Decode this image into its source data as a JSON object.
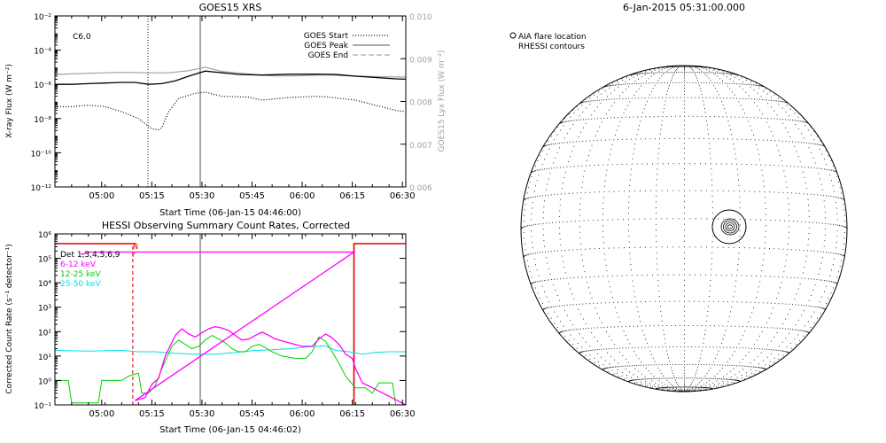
{
  "goes_panel": {
    "title": "GOES15 XRS",
    "ylabel_left": "X-ray Flux (W m⁻²)",
    "ylabel_right": "GOES15 Lyx Flux (W m⁻²)",
    "xlabel": "Start Time (06-Jan-15 04:46:00)",
    "flare_class": "C6.0",
    "legend": [
      "GOES Start",
      "GOES Peak",
      "GOES End"
    ]
  },
  "hessi_panel": {
    "title": "HESSI Observing Summary Count Rates, Corrected",
    "ylabel": "Corrected Count Rate (s⁻¹ detector⁻¹)",
    "xlabel": "Start Time (06-Jan-15 04:46:02)",
    "legend": [
      "Det 1,3,4,5,6,9",
      "6-12 keV",
      "12-25 keV",
      "25-50 keV"
    ],
    "flag_labels": [
      "N",
      "F"
    ]
  },
  "sun_panel": {
    "title": "6-Jan-2015 05:31:00.000",
    "legend_line1": "AIA flare location",
    "legend_line2": "RHESSI contours"
  },
  "colors": {
    "axes": "#000000",
    "goes_long": "#000000",
    "goes_short": "#000000",
    "lyman_alpha": "#a0a0a0",
    "peak_marker": "#a8a8a8",
    "attenuator": "#e00000",
    "band_6_12": "#ff00ff",
    "band_12_25": "#00d000",
    "band_25_50": "#00e0e0"
  },
  "chart_data": [
    {
      "type": "line",
      "title": "GOES15 XRS",
      "xlabel": "Start Time (06-Jan-15 04:46:00)",
      "ylabel": "X-ray Flux (W m⁻²)",
      "ylabel_right": "GOES15 Lyx Flux (W m⁻²)",
      "xlim": [
        "04:46",
        "06:31"
      ],
      "ylim": [
        1e-12,
        0.01
      ],
      "ylim_right": [
        0.006,
        0.01
      ],
      "yscale": "log",
      "x_ticks": [
        "05:00",
        "05:15",
        "05:30",
        "05:45",
        "06:00",
        "06:15",
        "06:30"
      ],
      "y_ticks": [
        "10⁻¹²",
        "10⁻¹⁰",
        "10⁻⁸",
        "10⁻⁶",
        "10⁻⁴",
        "10⁻²"
      ],
      "y_ticks_right": [
        "0.006",
        "0.007",
        "0.008",
        "0.009",
        "0.010"
      ],
      "annotation": "C6.0",
      "event_times": {
        "start": "05:16",
        "peak": "05:31"
      },
      "series": [
        {
          "values": [
            [
              0,
              1e-06
            ],
            [
              5,
              1e-06
            ],
            [
              10,
              1.1e-06
            ],
            [
              15,
              1.2e-06
            ],
            [
              20,
              1.3e-06
            ],
            [
              24,
              1.3e-06
            ],
            [
              28,
              1e-06
            ],
            [
              32,
              1.1e-06
            ],
            [
              36,
              1.6e-06
            ],
            [
              40,
              3e-06
            ],
            [
              45,
              6e-06
            ],
            [
              48,
              5.2e-06
            ],
            [
              55,
              3.8e-06
            ],
            [
              62,
              3.5e-06
            ],
            [
              70,
              3.9e-06
            ],
            [
              78,
              4e-06
            ],
            [
              84,
              3.8e-06
            ],
            [
              90,
              3e-06
            ],
            [
              96,
              2.5e-06
            ],
            [
              102,
              2.1e-06
            ],
            [
              105,
              2e-06
            ]
          ]
        },
        {
          "values": [
            [
              0,
              5e-08
            ],
            [
              5,
              5e-08
            ],
            [
              10,
              6e-08
            ],
            [
              15,
              5e-08
            ],
            [
              20,
              2.5e-08
            ],
            [
              25,
              1e-08
            ],
            [
              29,
              2.5e-09
            ],
            [
              31,
              2.2e-09
            ],
            [
              32,
              3e-09
            ],
            [
              34,
              2.5e-08
            ],
            [
              37,
              1.5e-07
            ],
            [
              42,
              3e-07
            ],
            [
              45,
              3.5e-07
            ],
            [
              50,
              2e-07
            ],
            [
              58,
              1.8e-07
            ],
            [
              62,
              1.2e-07
            ],
            [
              70,
              1.7e-07
            ],
            [
              78,
              2e-07
            ],
            [
              82,
              1.8e-07
            ],
            [
              90,
              1.2e-07
            ],
            [
              96,
              6e-08
            ],
            [
              102,
              3e-08
            ],
            [
              105,
              2.5e-08
            ]
          ]
        },
        {
          "values": [
            [
              0,
              0.00863
            ],
            [
              10,
              0.00866
            ],
            [
              20,
              0.00868
            ],
            [
              28,
              0.00867
            ],
            [
              34,
              0.00867
            ],
            [
              40,
              0.00872
            ],
            [
              45,
              0.0088
            ],
            [
              50,
              0.0087
            ],
            [
              58,
              0.00864
            ],
            [
              65,
              0.0086
            ],
            [
              72,
              0.0086
            ],
            [
              80,
              0.00862
            ],
            [
              88,
              0.0086
            ],
            [
              96,
              0.00858
            ],
            [
              105,
              0.00857
            ]
          ]
        }
      ]
    },
    {
      "type": "line",
      "title": "HESSI Observing Summary Count Rates, Corrected",
      "xlabel": "Start Time (06-Jan-15 04:46:02)",
      "ylabel": "Corrected Count Rate (s⁻¹ detector⁻¹)",
      "xlim": [
        "04:46",
        "06:31"
      ],
      "ylim": [
        0.1,
        1000000.0
      ],
      "yscale": "log",
      "x_ticks": [
        "05:00",
        "05:15",
        "05:30",
        "05:45",
        "06:00",
        "06:15",
        "06:30"
      ],
      "y_ticks": [
        "10⁻¹",
        "10⁰",
        "10¹",
        "10²",
        "10³",
        "10⁴",
        "10⁵",
        "10⁶"
      ],
      "flags": [
        "N",
        "F"
      ],
      "series": [
        {
          "name": "Det 1,3,4,5,6,9",
          "values": [
            [
              0,
              400000.0
            ],
            [
              24.3,
              400000.0
            ],
            [
              24.3,
              180000.0
            ],
            [
              25.0,
              180000.0
            ],
            [
              25.0,
              0.1
            ],
            [
              25.0,
              0.1
            ],
            [
              25.0,
              180000.0
            ],
            [
              89.5,
              180000.0
            ],
            [
              89.5,
              0.1
            ],
            [
              89.7,
              0.1
            ],
            [
              89.7,
              400000.0
            ],
            [
              105,
              400000.0
            ]
          ]
        },
        {
          "name": "6-12 keV",
          "values": [
            [
              7.8,
              150000.0
            ],
            [
              8.5,
              150000.0
            ],
            [
              9.2,
              160000.0
            ],
            [
              9.2,
              180000.0
            ],
            [
              89.5,
              180000.0
            ],
            [
              24,
              0.15
            ],
            [
              27,
              0.2
            ],
            [
              29,
              0.7
            ],
            [
              31,
              1.2
            ],
            [
              33,
              10
            ],
            [
              36,
              70
            ],
            [
              38,
              130
            ],
            [
              40,
              80
            ],
            [
              42,
              60
            ],
            [
              44,
              90
            ],
            [
              46,
              130
            ],
            [
              48,
              160
            ],
            [
              50,
              140
            ],
            [
              52,
              110
            ],
            [
              54,
              70
            ],
            [
              56,
              45
            ],
            [
              58,
              50
            ],
            [
              60,
              70
            ],
            [
              62,
              95
            ],
            [
              64,
              70
            ],
            [
              66,
              50
            ],
            [
              70,
              35
            ],
            [
              74,
              25
            ],
            [
              77,
              25
            ],
            [
              79,
              50
            ],
            [
              81,
              80
            ],
            [
              83,
              55
            ],
            [
              85,
              30
            ],
            [
              87,
              12
            ],
            [
              89,
              8
            ],
            [
              90,
              3
            ],
            [
              92,
              0.8
            ],
            [
              95,
              0.5
            ],
            [
              105,
              0.1
            ]
          ]
        },
        {
          "name": "12-25 keV",
          "values": [
            [
              0,
              1.0
            ],
            [
              4,
              1.0
            ],
            [
              5,
              0.12
            ],
            [
              13,
              0.12
            ],
            [
              14,
              1.0
            ],
            [
              20,
              1.0
            ],
            [
              22,
              1.5
            ],
            [
              25,
              2.0
            ],
            [
              26,
              0.3
            ],
            [
              28,
              0.3
            ],
            [
              30,
              0.6
            ],
            [
              32,
              3
            ],
            [
              35,
              25
            ],
            [
              37,
              45
            ],
            [
              39,
              30
            ],
            [
              41,
              20
            ],
            [
              43,
              25
            ],
            [
              45,
              45
            ],
            [
              47,
              70
            ],
            [
              49,
              50
            ],
            [
              51,
              35
            ],
            [
              53,
              20
            ],
            [
              55,
              15
            ],
            [
              57,
              15
            ],
            [
              59,
              25
            ],
            [
              61,
              30
            ],
            [
              63,
              22
            ],
            [
              65,
              15
            ],
            [
              68,
              10
            ],
            [
              72,
              8
            ],
            [
              75,
              8
            ],
            [
              77,
              15
            ],
            [
              79,
              60
            ],
            [
              81,
              40
            ],
            [
              83,
              15
            ],
            [
              85,
              5
            ],
            [
              87,
              1.5
            ],
            [
              89,
              0.7
            ],
            [
              90,
              0.5
            ],
            [
              93,
              0.5
            ],
            [
              95,
              0.3
            ],
            [
              97,
              0.8
            ],
            [
              101,
              0.8
            ],
            [
              102,
              0.1
            ],
            [
              105,
              0.1
            ]
          ]
        },
        {
          "name": "25-50 keV",
          "values": [
            [
              0,
              17
            ],
            [
              10,
              16
            ],
            [
              20,
              17
            ],
            [
              25,
              15
            ],
            [
              30,
              15
            ],
            [
              36,
              13
            ],
            [
              42,
              12
            ],
            [
              48,
              12
            ],
            [
              54,
              14
            ],
            [
              60,
              17
            ],
            [
              65,
              18
            ],
            [
              70,
              20
            ],
            [
              76,
              24
            ],
            [
              81,
              26
            ],
            [
              84,
              17
            ],
            [
              88,
              15
            ],
            [
              92,
              12
            ],
            [
              96,
              14
            ],
            [
              100,
              15
            ],
            [
              105,
              15
            ]
          ]
        }
      ]
    },
    {
      "type": "other",
      "title": "6-Jan-2015 05:31:00.000",
      "annotations": [
        "AIA flare location",
        "RHESSI contours"
      ]
    }
  ]
}
